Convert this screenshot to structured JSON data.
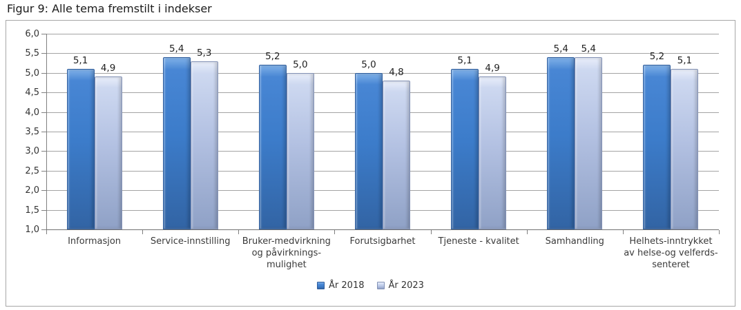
{
  "page": {
    "title": "Figur 9: Alle tema fremstilt i indekser"
  },
  "chart_data": {
    "type": "bar",
    "title": "Figur 9: Alle tema fremstilt i indekser",
    "categories": [
      "Informasjon",
      "Service-innstilling",
      "Bruker-medvirkning og påvirknings-mulighet",
      "Forutsigbarhet",
      "Tjeneste - kvalitet",
      "Samhandling",
      "Helhets-inntrykket av helse-og velferds-senteret"
    ],
    "category_lines": [
      [
        "Informasjon"
      ],
      [
        "Service-innstilling"
      ],
      [
        "Bruker-medvirkning",
        "og påvirknings-",
        "mulighet"
      ],
      [
        "Forutsigbarhet"
      ],
      [
        "Tjeneste - kvalitet"
      ],
      [
        "Samhandling"
      ],
      [
        "Helhets-inntrykket",
        "av helse-og velferds-",
        "senteret"
      ]
    ],
    "series": [
      {
        "name": "År 2018",
        "values": [
          5.1,
          5.4,
          5.2,
          5.0,
          5.1,
          5.4,
          5.2
        ],
        "colors": {
          "cap": "#7fb0e8",
          "top": "#4886d4",
          "mid": "#3c7cca",
          "bottom": "#3264a4",
          "border": "#2d5c9c"
        }
      },
      {
        "name": "År 2023",
        "values": [
          4.9,
          5.3,
          5.0,
          4.8,
          4.9,
          5.4,
          5.1
        ],
        "colors": {
          "cap": "#e9eefa",
          "top": "#cdd8f0",
          "mid": "#b3c1e2",
          "bottom": "#8fa1c6",
          "border": "#8291b5"
        }
      }
    ],
    "xlabel": "",
    "ylabel": "",
    "ylim": [
      1.0,
      6.0
    ],
    "ytick_step": 0.5,
    "decimal_separator": ",",
    "grid": "horizontal",
    "legend_position": "bottom",
    "colors": {
      "gridline": "#a3a3a3",
      "axis": "#7f7f7f",
      "chart_border": "#a6a6a6",
      "label_text": "#1f1f1f",
      "axis_text": "#333333"
    }
  }
}
